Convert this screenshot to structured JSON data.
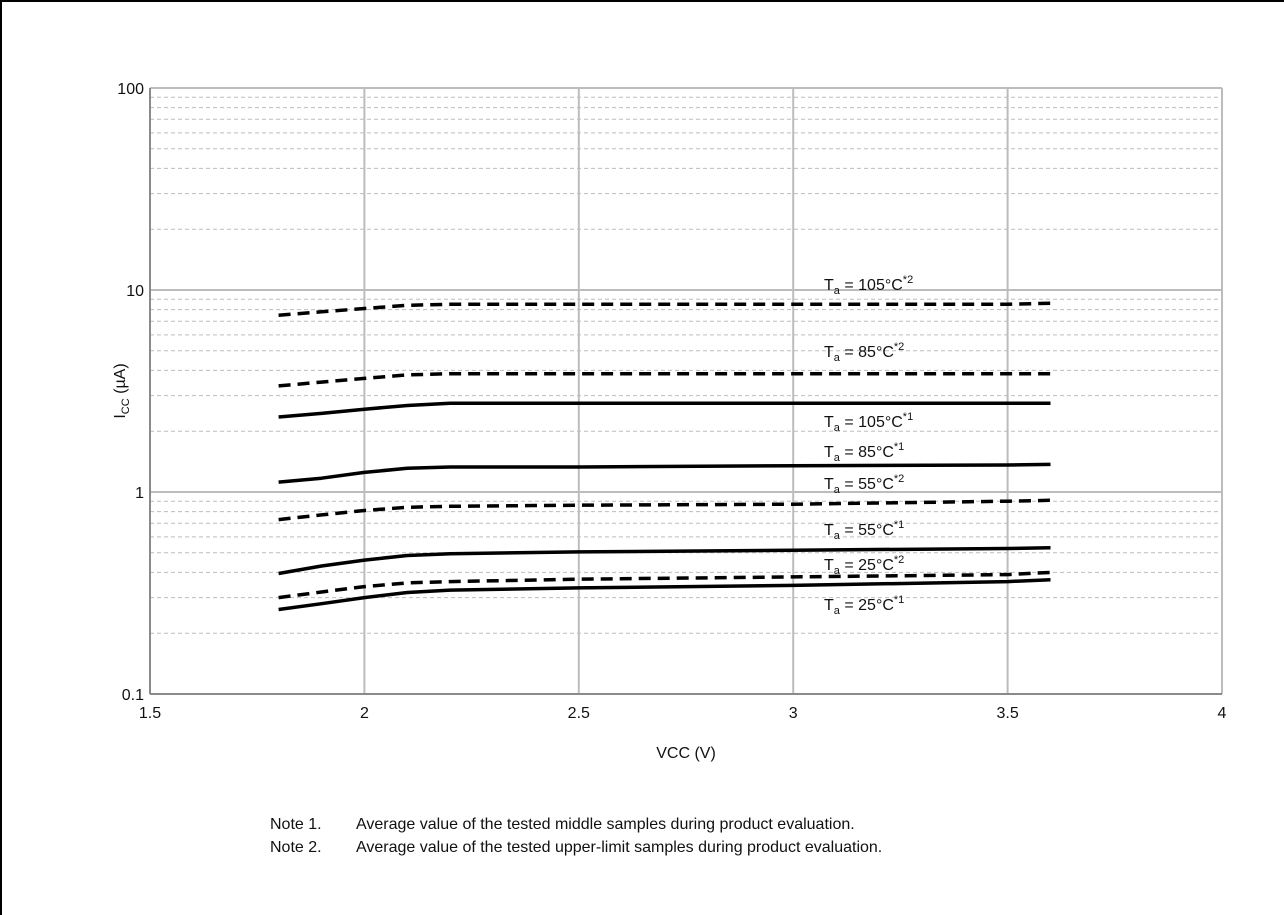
{
  "chart_data": {
    "type": "line",
    "title": "",
    "xlabel": "VCC (V)",
    "ylabel": {
      "main": "I",
      "sub": "CC",
      "rest": " (µA)"
    },
    "xlim": [
      1.5,
      4
    ],
    "ylim": [
      0.1,
      100
    ],
    "y_scale": "log",
    "grid": true,
    "x_ticks": [
      "1.5",
      "2",
      "2.5",
      "3",
      "3.5",
      "4"
    ],
    "y_ticks": [
      "0.1",
      "1",
      "10",
      "100"
    ],
    "series": [
      {
        "name": "Ta = 105°C*2",
        "label": {
          "t": "T",
          "sub": "a",
          "mid": " = 105°C",
          "sup": "*2"
        },
        "dashed": true,
        "x": [
          1.8,
          1.9,
          2.0,
          2.1,
          2.2,
          2.5,
          3.0,
          3.5,
          3.6
        ],
        "y": [
          7.5,
          7.8,
          8.1,
          8.4,
          8.5,
          8.5,
          8.5,
          8.5,
          8.6
        ]
      },
      {
        "name": "Ta = 85°C*2",
        "label": {
          "t": "T",
          "sub": "a",
          "mid": " = 85°C",
          "sup": "*2"
        },
        "dashed": true,
        "x": [
          1.8,
          1.9,
          2.0,
          2.1,
          2.2,
          2.5,
          3.0,
          3.5,
          3.6
        ],
        "y": [
          3.35,
          3.5,
          3.65,
          3.8,
          3.85,
          3.85,
          3.85,
          3.85,
          3.85
        ]
      },
      {
        "name": "Ta = 105°C*1",
        "label": {
          "t": "T",
          "sub": "a",
          "mid": " = 105°C",
          "sup": "*1"
        },
        "dashed": false,
        "x": [
          1.8,
          1.9,
          2.0,
          2.1,
          2.2,
          2.5,
          3.0,
          3.5,
          3.6
        ],
        "y": [
          2.35,
          2.45,
          2.57,
          2.68,
          2.75,
          2.75,
          2.75,
          2.75,
          2.75
        ]
      },
      {
        "name": "Ta = 85°C*1",
        "label": {
          "t": "T",
          "sub": "a",
          "mid": " = 85°C",
          "sup": "*1"
        },
        "dashed": false,
        "x": [
          1.8,
          1.9,
          2.0,
          2.1,
          2.2,
          2.5,
          3.0,
          3.5,
          3.6
        ],
        "y": [
          1.12,
          1.17,
          1.25,
          1.31,
          1.33,
          1.33,
          1.35,
          1.36,
          1.37
        ]
      },
      {
        "name": "Ta = 55°C*2",
        "label": {
          "t": "T",
          "sub": "a",
          "mid": " = 55°C",
          "sup": "*2"
        },
        "dashed": true,
        "x": [
          1.8,
          1.9,
          2.0,
          2.1,
          2.2,
          2.5,
          3.0,
          3.5,
          3.6
        ],
        "y": [
          0.73,
          0.77,
          0.81,
          0.84,
          0.85,
          0.86,
          0.87,
          0.9,
          0.91
        ]
      },
      {
        "name": "Ta = 55°C*1",
        "label": {
          "t": "T",
          "sub": "a",
          "mid": " = 55°C",
          "sup": "*1"
        },
        "dashed": false,
        "x": [
          1.8,
          1.9,
          2.0,
          2.1,
          2.2,
          2.5,
          3.0,
          3.5,
          3.6
        ],
        "y": [
          0.395,
          0.43,
          0.46,
          0.485,
          0.495,
          0.505,
          0.515,
          0.525,
          0.53
        ]
      },
      {
        "name": "Ta = 25°C*2",
        "label": {
          "t": "T",
          "sub": "a",
          "mid": " = 25°C",
          "sup": "*2"
        },
        "dashed": true,
        "x": [
          1.8,
          1.9,
          2.0,
          2.1,
          2.2,
          2.5,
          3.0,
          3.5,
          3.6
        ],
        "y": [
          0.3,
          0.32,
          0.34,
          0.355,
          0.36,
          0.37,
          0.38,
          0.39,
          0.4
        ]
      },
      {
        "name": "Ta = 25°C*1",
        "label": {
          "t": "T",
          "sub": "a",
          "mid": " = 25°C",
          "sup": "*1"
        },
        "dashed": false,
        "x": [
          1.8,
          1.9,
          2.0,
          2.1,
          2.2,
          2.5,
          3.0,
          3.5,
          3.6
        ],
        "y": [
          0.262,
          0.28,
          0.3,
          0.318,
          0.327,
          0.335,
          0.345,
          0.36,
          0.368
        ]
      }
    ]
  },
  "notes": [
    {
      "tag": "Note 1.",
      "text": "Average value of the tested middle samples during product evaluation."
    },
    {
      "tag": "Note 2.",
      "text": "Average value of the tested upper-limit samples during product evaluation."
    }
  ]
}
